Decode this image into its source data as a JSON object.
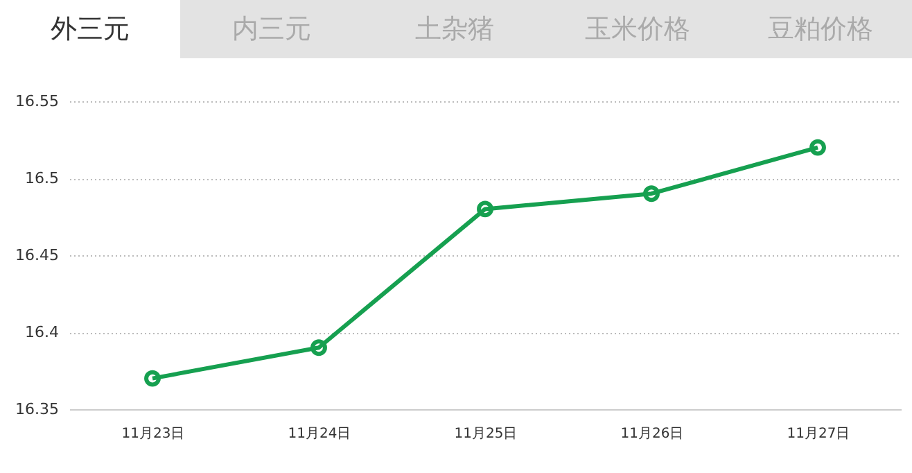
{
  "chart_data": {
    "type": "line",
    "annotations": [
      "外三元",
      "内三元",
      "土杂猪",
      "玉米价格",
      "豆粕价格"
    ],
    "categories": [
      "11月23日",
      "11月24日",
      "11月25日",
      "11月26日",
      "11月27日"
    ],
    "series": [
      {
        "color": "#16a050",
        "values": [
          16.37,
          16.39,
          16.48,
          16.49,
          16.52
        ]
      }
    ],
    "ylim": [
      16.35,
      16.55
    ],
    "yticks": [
      {
        "value": 16.35,
        "label": "16.35"
      },
      {
        "value": 16.4,
        "label": "16.4"
      },
      {
        "value": 16.45,
        "label": "16.45"
      },
      {
        "value": 16.5,
        "label": "16.5"
      },
      {
        "value": 16.55,
        "label": "16.55"
      }
    ],
    "grid": "y",
    "marker": "circle",
    "line_style": "solid"
  }
}
